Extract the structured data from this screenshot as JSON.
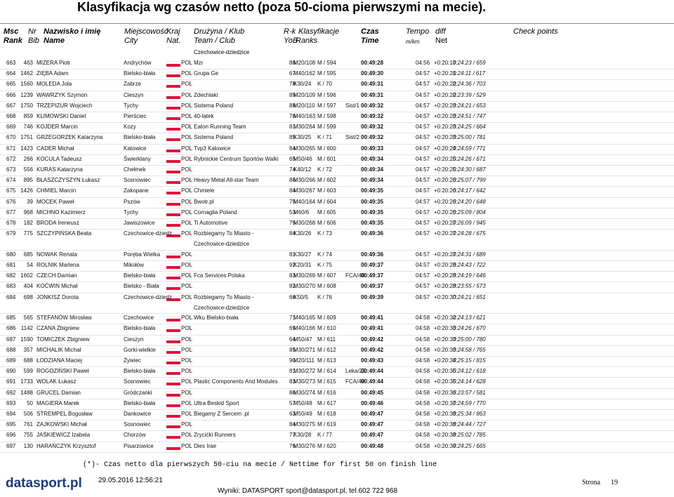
{
  "header": {
    "title": "Klasyfikacja wg czasów netto (poza 50-cioma pierwszymi na mecie).",
    "columns": {
      "rank": [
        "Msc",
        "Rank"
      ],
      "bib": [
        "Nr",
        "Bib"
      ],
      "name": [
        "Nazwisko i imię",
        "Name"
      ],
      "city": [
        "Miejscowość",
        "City"
      ],
      "nat": [
        "Kraj",
        "Nat."
      ],
      "team": [
        "Drużyna / Klub",
        "Team / Club"
      ],
      "yob": [
        "R-k",
        "YoB"
      ],
      "ranks": [
        "Klasyfikacje",
        "Ranks"
      ],
      "time": [
        "Czas",
        "Time"
      ],
      "pace": [
        "Tempo",
        "m/km"
      ],
      "diff": [
        "diff",
        "Net"
      ],
      "checkpoints": [
        "Check points"
      ]
    }
  },
  "continuation": "Czechowice-dziedzice",
  "rows": [
    {
      "rank": "663",
      "bib": "463",
      "name": "MIZERA Piotr",
      "city": "Andrychów",
      "nat": "POL",
      "team": "Mzr",
      "yob": "88",
      "category": "M20/108",
      "gender_rank": "M / 594",
      "time": "00:49:28",
      "pace": "04:56",
      "diff": "+0:20:19",
      "net": "0:24:23 / 659"
    },
    {
      "rank": "664",
      "bib": "1462",
      "name": "ZIĘBA Adam",
      "city": "Bielsko-biała",
      "nat": "POL",
      "team": "Grupa Ge",
      "yob": "67",
      "category": "M40/162",
      "gender_rank": "M / 595",
      "time": "00:49:30",
      "pace": "04:57",
      "diff": "+0:20:21",
      "net": "0:24:11 / 617"
    },
    {
      "rank": "665",
      "bib": "1560",
      "name": "MOLEDA Jola",
      "city": "Zabrze",
      "nat": "POL",
      "yob": "78",
      "category": "K30/24",
      "gender_rank": "K / 70",
      "time": "00:49:31",
      "pace": "04:57",
      "diff": "+0:20:22",
      "net": "0:24:36 / 703"
    },
    {
      "rank": "666",
      "bib": "1239",
      "name": "WAWRZYK Szymon",
      "city": "Cieszyn",
      "nat": "POL",
      "team": "Zdechlaki",
      "yob": "89",
      "category": "M20/109",
      "gender_rank": "M / 596",
      "time": "00:49:31",
      "pace": "04:57",
      "diff": "+0:20:22",
      "net": "0:23:39 / 529"
    },
    {
      "rank": "667",
      "bib": "1750",
      "name": "TRZEPIZUR Wojciech",
      "city": "Tychy",
      "nat": "POL",
      "team": "Sistema Poland",
      "yob": "88",
      "category": "M20/110",
      "gender_rank": "M / 597",
      "club": "Sist/1",
      "time": "00:49:32",
      "pace": "04:57",
      "diff": "+0:20:23",
      "net": "0:24:21 / 653"
    },
    {
      "rank": "668",
      "bib": "859",
      "name": "KLIMOWSKI Daniel",
      "city": "Pierściec",
      "nat": "POL",
      "team": "40-latek",
      "yob": "76",
      "category": "M40/163",
      "gender_rank": "M / 598",
      "time": "00:49:32",
      "pace": "04:57",
      "diff": "+0:20:23",
      "net": "0:24:51 / 747"
    },
    {
      "rank": "669",
      "bib": "746",
      "name": "KOJDER Marcin",
      "city": "Kozy",
      "nat": "POL",
      "team": "Eaton Running Team",
      "yob": "81",
      "category": "M30/264",
      "gender_rank": "M / 599",
      "time": "00:49:32",
      "pace": "04:57",
      "diff": "+0:20:23",
      "net": "0:24:25 / 664"
    },
    {
      "rank": "670",
      "bib": "1751",
      "name": "GRZEGORZEK Katarzyna",
      "city": "Bielsko-biała",
      "nat": "POL",
      "team": "Sistema Poland",
      "yob": "85",
      "category": "K30/25",
      "gender_rank": "K / 71",
      "club": "Sist/2",
      "time": "00:49:32",
      "pace": "04:57",
      "diff": "+0:20:23",
      "net": "0:25:00 / 781"
    },
    {
      "rank": "671",
      "bib": "1423",
      "name": "CADER Michał",
      "city": "Katowice",
      "nat": "POL",
      "team": "Tvp3 Katowice",
      "yob": "84",
      "category": "M30/265",
      "gender_rank": "M / 600",
      "time": "00:49:33",
      "pace": "04:57",
      "diff": "+0:20:24",
      "net": "0:24:59 / 771"
    },
    {
      "rank": "672",
      "bib": "266",
      "name": "KOCULA Tadeusz",
      "city": "Świerklany",
      "nat": "POL",
      "team": "Rybnickie Centrum Sportów Walki",
      "yob": "65",
      "category": "M50/46",
      "gender_rank": "M / 601",
      "time": "00:49:34",
      "pace": "04:57",
      "diff": "+0:20:25",
      "net": "0:24:26 / 671"
    },
    {
      "rank": "673",
      "bib": "556",
      "name": "KURAS Katarzyna",
      "city": "Chełmek",
      "nat": "POL",
      "yob": "74",
      "category": "K40/12",
      "gender_rank": "K / 72",
      "time": "00:49:34",
      "pace": "04:57",
      "diff": "+0:20:25",
      "net": "0:24:30 / 687"
    },
    {
      "rank": "674",
      "bib": "895",
      "name": "BŁASZCZYSZYN Łukasz",
      "city": "Sosnowiec",
      "nat": "POL",
      "team": "Heavy Metal All-star Team",
      "yob": "86",
      "category": "M30/266",
      "gender_rank": "M / 602",
      "time": "00:49:34",
      "pace": "04:57",
      "diff": "+0:20:26",
      "net": "0:25:07 / 799"
    },
    {
      "rank": "675",
      "bib": "1426",
      "name": "CHMIEL Marcin",
      "city": "Zakopane",
      "nat": "POL",
      "team": "Chmiele",
      "yob": "84",
      "category": "M30/267",
      "gender_rank": "M / 603",
      "time": "00:49:35",
      "pace": "04:57",
      "diff": "+0:20:26",
      "net": "0:24:17 / 642"
    },
    {
      "rank": "676",
      "bib": "39",
      "name": "MOCEK Paweł",
      "city": "Pszów",
      "nat": "POL",
      "team": "Bwotr.pl",
      "yob": "75",
      "category": "M40/164",
      "gender_rank": "M / 604",
      "time": "00:49:35",
      "pace": "04:57",
      "diff": "+0:20:26",
      "net": "0:24:20 / 648"
    },
    {
      "rank": "677",
      "bib": "968",
      "name": "MICHNO Kazimierz",
      "city": "Tychy",
      "nat": "POL",
      "team": "Cornaglia Poland",
      "yob": "53",
      "category": "M60/6",
      "gender_rank": "M / 605",
      "time": "00:49:35",
      "pace": "04:57",
      "diff": "+0:20:26",
      "net": "0:25:09 / 804"
    },
    {
      "rank": "678",
      "bib": "182",
      "name": "BRODA Ireneusz",
      "city": "Jawiszowice",
      "nat": "POL",
      "team": "Ti Automotive",
      "yob": "79",
      "category": "M30/268",
      "gender_rank": "M / 606",
      "time": "00:49:35",
      "pace": "04:57",
      "diff": "+0:20:27",
      "net": "0:26:09 / 945"
    },
    {
      "rank": "679",
      "bib": "775",
      "name": "SZCZYPIŃSKA Beata",
      "city": "Czechowice-dziedz",
      "nat": "POL",
      "team": "Rozbiegamy To Miasto -",
      "team_line2": "Czechowice-dziedzice",
      "yob": "84",
      "category": "K30/26",
      "gender_rank": "K / 73",
      "time": "00:49:36",
      "pace": "04:57",
      "diff": "+0:20:27",
      "net": "0:24:28 / 675"
    },
    {
      "rank": "680",
      "bib": "685",
      "name": "NOWAK Renata",
      "city": "Poręba Wielka",
      "nat": "POL",
      "yob": "81",
      "category": "K30/27",
      "gender_rank": "K / 74",
      "time": "00:49:36",
      "pace": "04:57",
      "diff": "+0:20:27",
      "net": "0:24:31 / 689"
    },
    {
      "rank": "681",
      "bib": "54",
      "name": "ROLNIK Marlena",
      "city": "Mikołów",
      "nat": "POL",
      "yob": "92",
      "category": "K20/31",
      "gender_rank": "K / 75",
      "time": "00:49:37",
      "pace": "04:57",
      "diff": "+0:20:28",
      "net": "0:24:43 / 722"
    },
    {
      "rank": "682",
      "bib": "1602",
      "name": "CZECH Damian",
      "city": "Bielsko-biała",
      "nat": "POL",
      "team": "Fca Services Polska",
      "yob": "83",
      "category": "M30/269",
      "gender_rank": "M / 607",
      "club": "FCA/48",
      "time": "00:49:37",
      "pace": "04:57",
      "diff": "+0:20:28",
      "net": "0:24:19 / 646"
    },
    {
      "rank": "683",
      "bib": "404",
      "name": "KOĆWIN Michał",
      "city": "Bielsko - Biała",
      "nat": "POL",
      "yob": "82",
      "category": "M30/270",
      "gender_rank": "M / 608",
      "time": "00:49:37",
      "pace": "04:57",
      "diff": "+0:20:28",
      "net": "0:23:55 / 573"
    },
    {
      "rank": "684",
      "bib": "698",
      "name": "JONKISZ Dorota",
      "city": "Czechowice-dziedz",
      "nat": "POL",
      "team": "Rozbiegamy To Miasto -",
      "team_line2": "Czechowice-dziedzice",
      "yob": "66",
      "category": "K50/5",
      "gender_rank": "K / 76",
      "time": "00:49:39",
      "pace": "04:57",
      "diff": "+0:20:30",
      "net": "0:24:21 / 651"
    },
    {
      "rank": "685",
      "bib": "565",
      "name": "STEFANÓW Mirosław",
      "city": "Czechowice",
      "nat": "POL",
      "team": "Wku Bielsko-biała",
      "yob": "71",
      "category": "M40/165",
      "gender_rank": "M / 609",
      "time": "00:49:41",
      "pace": "04:58",
      "diff": "+0:20:32",
      "net": "0:24:13 / 621"
    },
    {
      "rank": "686",
      "bib": "1142",
      "name": "CZANA Zbigniew",
      "city": "Bielsko-biała",
      "nat": "POL",
      "yob": "69",
      "category": "M40/166",
      "gender_rank": "M / 610",
      "time": "00:49:41",
      "pace": "04:58",
      "diff": "+0:20:33",
      "net": "0:24:26 / 670"
    },
    {
      "rank": "687",
      "bib": "1590",
      "name": "TOMICZEK Zbigniew",
      "city": "Cieszyn",
      "nat": "POL",
      "yob": "64",
      "category": "M50/47",
      "gender_rank": "M / 611",
      "time": "00:49:42",
      "pace": "04:58",
      "diff": "+0:20:33",
      "net": "0:25:00 / 780"
    },
    {
      "rank": "688",
      "bib": "357",
      "name": "MICHALIK Michał",
      "city": "Gorki-wielkie",
      "nat": "POL",
      "yob": "85",
      "category": "M30/271",
      "gender_rank": "M / 612",
      "time": "00:49:42",
      "pace": "04:58",
      "diff": "+0:20:33",
      "net": "0:24:58 / 765"
    },
    {
      "rank": "689",
      "bib": "688",
      "name": "ŁODZIANA Maciej",
      "city": "Żywiec",
      "nat": "POL",
      "yob": "90",
      "category": "M20/111",
      "gender_rank": "M / 613",
      "time": "00:49:43",
      "pace": "04:58",
      "diff": "+0:20:34",
      "net": "0:25:15 / 815"
    },
    {
      "rank": "690",
      "bib": "599",
      "name": "ROGOZIŃSKI Paweł",
      "city": "Bielsko-biała",
      "nat": "POL",
      "yob": "81",
      "category": "M30/272",
      "gender_rank": "M / 614",
      "club": "Leka/22",
      "time": "00:49:44",
      "pace": "04:58",
      "diff": "+0:20:35",
      "net": "0:24:12 / 618"
    },
    {
      "rank": "691",
      "bib": "1733",
      "name": "WOLAK Łukasz",
      "city": "Sosnowiec",
      "nat": "POL",
      "team": "Plastic Components And Modules",
      "yob": "83",
      "category": "M30/273",
      "gender_rank": "M / 615",
      "club": "FCA/49",
      "time": "00:49:44",
      "pace": "04:58",
      "diff": "+0:20:35",
      "net": "0:24:14 / 628"
    },
    {
      "rank": "692",
      "bib": "1488",
      "name": "GRUCEL Damian",
      "city": "Gródczanki",
      "nat": "POL",
      "yob": "86",
      "category": "M30/274",
      "gender_rank": "M / 616",
      "time": "00:49:45",
      "pace": "04:58",
      "diff": "+0:20:36",
      "net": "0:23:57 / 581"
    },
    {
      "rank": "693",
      "bib": "50",
      "name": "MAGIERA Marek",
      "city": "Bielsko-biała",
      "nat": "POL",
      "team": "Ultra Beskid Sport",
      "yob": "57",
      "category": "M50/48",
      "gender_rank": "M / 617",
      "time": "00:49:46",
      "pace": "04:58",
      "diff": "+0:20:37",
      "net": "0:24:59 / 770"
    },
    {
      "rank": "694",
      "bib": "506",
      "name": "STREMPEL Bogusław",
      "city": "Dankowice",
      "nat": "POL",
      "team": "Biegamy Z Sercem .pl",
      "yob": "63",
      "category": "M50/49",
      "gender_rank": "M / 618",
      "time": "00:49:47",
      "pace": "04:58",
      "diff": "+0:20:38",
      "net": "0:25:34 / 863"
    },
    {
      "rank": "695",
      "bib": "761",
      "name": "ZAJKOWSKI Michał",
      "city": "Sosnowiec",
      "nat": "POL",
      "yob": "84",
      "category": "M30/275",
      "gender_rank": "M / 619",
      "time": "00:49:47",
      "pace": "04:58",
      "diff": "+0:20:38",
      "net": "0:24:44 / 727"
    },
    {
      "rank": "696",
      "bib": "755",
      "name": "JAŚKIEWICZ Izabela",
      "city": "Chorzów",
      "nat": "POL",
      "team": "Zrycićki Runners",
      "yob": "77",
      "category": "K30/28",
      "gender_rank": "K / 77",
      "time": "00:49:47",
      "pace": "04:58",
      "diff": "+0:20:38",
      "net": "0:25:02 / 785"
    },
    {
      "rank": "697",
      "bib": "130",
      "name": "HARAŃCZYK Krzysztof",
      "city": "Pisarzowice",
      "nat": "POL",
      "team": "Dies Irae",
      "yob": "76",
      "category": "M30/276",
      "gender_rank": "M / 620",
      "time": "00:49:48",
      "pace": "04:58",
      "diff": "+0:20:39",
      "net": "0:24:25 / 665"
    }
  ],
  "footer": {
    "note": "(*)- Czas netto dla pierwszych 50-ciu na mecie / Nettime for first 50 on finish line",
    "logo": "datasport.pl",
    "date": "29.05.2016 12:56:21",
    "contact": "Wyniki: DATASPORT sport@datasport.pl, tel.602 722 968",
    "page_label": "Strona",
    "page_number": "19"
  }
}
